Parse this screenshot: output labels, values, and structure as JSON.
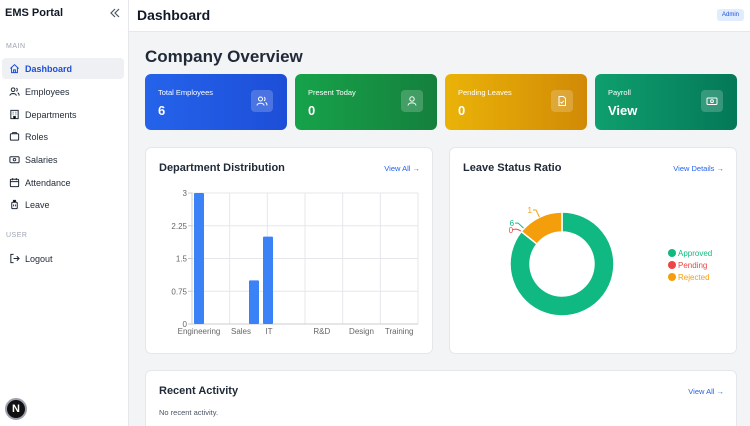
{
  "sidebar": {
    "brand": "EMS Portal",
    "sections": {
      "main": "MAIN",
      "user": "USER"
    },
    "items": [
      {
        "label": "Dashboard",
        "icon": "home-icon",
        "active": true
      },
      {
        "label": "Employees",
        "icon": "users-icon"
      },
      {
        "label": "Departments",
        "icon": "building-icon"
      },
      {
        "label": "Roles",
        "icon": "roles-icon"
      },
      {
        "label": "Salaries",
        "icon": "banknote-icon"
      },
      {
        "label": "Attendance",
        "icon": "calendar-icon"
      },
      {
        "label": "Leave",
        "icon": "luggage-icon"
      }
    ],
    "logout": "Logout",
    "badge": "N"
  },
  "header": {
    "title": "Dashboard",
    "user_badge": "Admin"
  },
  "main": {
    "title": "Company Overview",
    "stats": [
      {
        "label": "Total Employees",
        "value": "6",
        "icon": "users-icon",
        "color": "#2563eb"
      },
      {
        "label": "Present Today",
        "value": "0",
        "icon": "user-icon",
        "color": "#16a34a"
      },
      {
        "label": "Pending Leaves",
        "value": "0",
        "icon": "file-check-icon",
        "color": "#eab308"
      },
      {
        "label": "Payroll",
        "value": "View",
        "icon": "banknote-icon",
        "color": "#0f9f6e"
      }
    ],
    "dept_panel": {
      "title": "Department Distribution",
      "link": "View All →"
    },
    "leave_panel": {
      "title": "Leave Status Ratio",
      "link": "View Details →"
    },
    "activity_panel": {
      "title": "Recent Activity",
      "link": "View All →",
      "empty": "No recent activity."
    }
  },
  "chart_data": [
    {
      "type": "bar",
      "categories": [
        "Engineering",
        "Sales",
        "IT",
        "R&D",
        "Design",
        "Training"
      ],
      "values": [
        3,
        0,
        1,
        2,
        0,
        0
      ],
      "y_ticks": [
        "0",
        "0.75",
        "1.5",
        "2.25",
        "3"
      ],
      "ylim": [
        0,
        3
      ],
      "grid": true,
      "color": "#3b82f6"
    },
    {
      "type": "pie",
      "donut": true,
      "labels": [
        "Approved",
        "Pending",
        "Rejected"
      ],
      "values": [
        6,
        0,
        1
      ],
      "colors": [
        "#10b981",
        "#ef4444",
        "#f59e0b"
      ],
      "legend": "right"
    }
  ]
}
